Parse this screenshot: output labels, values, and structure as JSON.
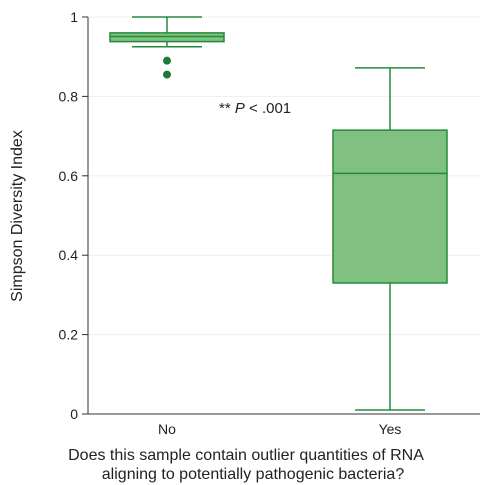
{
  "chart_data": {
    "type": "box",
    "ylabel": "Simpson Diversity Index",
    "xlabel_lines": [
      "Does this sample contain outlier quantities of RNA",
      "aligning to potentially pathogenic bacteria?"
    ],
    "ylim": [
      0,
      1
    ],
    "yticks": [
      0,
      0.2,
      0.4,
      0.6,
      0.8,
      1
    ],
    "ytick_labels": [
      "0",
      "0.2",
      "0.4",
      "0.6",
      "0.8",
      "1"
    ],
    "grid": true,
    "categories": [
      "No",
      "Yes"
    ],
    "boxes": [
      {
        "category": "No",
        "whisker_low": 0.925,
        "q1": 0.938,
        "median": 0.951,
        "q3": 0.96,
        "whisker_high": 1.0,
        "outliers": [
          0.89,
          0.855
        ]
      },
      {
        "category": "Yes",
        "whisker_low": 0.01,
        "q1": 0.33,
        "median": 0.606,
        "q3": 0.715,
        "whisker_high": 0.872,
        "outliers": []
      }
    ],
    "annotation": {
      "prefix": "** ",
      "italic": "P",
      "suffix": " < .001"
    },
    "colors": {
      "box_fill": "#80c080",
      "box_edge": "#228b3b",
      "outlier": "#1e7a3a",
      "grid": "#eeeeee",
      "axis": "#333333"
    }
  }
}
